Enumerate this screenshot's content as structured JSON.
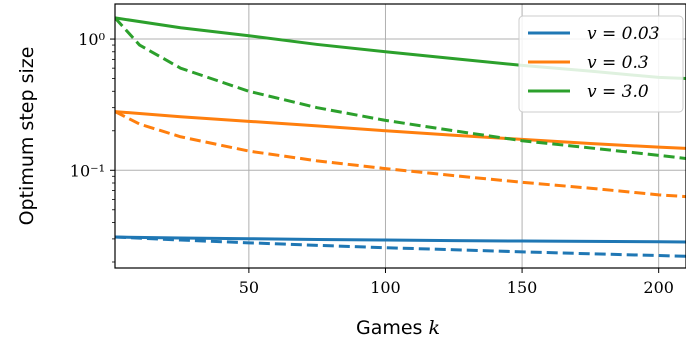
{
  "chart_data": {
    "type": "line",
    "xlabel": "Games k",
    "ylabel": "Optimum step size",
    "xlim": [
      1,
      210
    ],
    "ylim": [
      0.018,
      1.85
    ],
    "yscale": "log",
    "grid": true,
    "legend_position": "top-right",
    "x_ticks": [
      50,
      100,
      150,
      200
    ],
    "x_tick_labels": [
      "50",
      "100",
      "150",
      "200"
    ],
    "y_ticks": [
      1.0,
      0.1
    ],
    "y_tick_labels": [
      "10⁰",
      "10⁻¹"
    ],
    "legend": [
      "v = 0.03",
      "v = 0.3",
      "v = 3.0"
    ],
    "series": [
      {
        "name": "v = 0.03",
        "color": "#1f77b4",
        "linestyle": "solid",
        "x": [
          1,
          25,
          50,
          75,
          100,
          125,
          150,
          175,
          200,
          210
        ],
        "y": [
          0.031,
          0.0305,
          0.0301,
          0.0297,
          0.0294,
          0.0291,
          0.0289,
          0.0287,
          0.0285,
          0.0284
        ]
      },
      {
        "name": "v = 0.03",
        "color": "#1f77b4",
        "linestyle": "dashed",
        "x": [
          1,
          25,
          50,
          75,
          100,
          125,
          150,
          175,
          200,
          210
        ],
        "y": [
          0.031,
          0.0294,
          0.028,
          0.0268,
          0.0257,
          0.0248,
          0.0239,
          0.0231,
          0.0224,
          0.0221
        ]
      },
      {
        "name": "v = 0.3",
        "color": "#ff7f0e",
        "linestyle": "solid",
        "x": [
          1,
          25,
          50,
          75,
          100,
          125,
          150,
          175,
          200,
          210
        ],
        "y": [
          0.28,
          0.256,
          0.236,
          0.218,
          0.2,
          0.185,
          0.172,
          0.16,
          0.15,
          0.147
        ]
      },
      {
        "name": "v = 0.3",
        "color": "#ff7f0e",
        "linestyle": "dashed",
        "x": [
          1,
          10,
          25,
          50,
          75,
          100,
          125,
          150,
          175,
          200,
          210
        ],
        "y": [
          0.28,
          0.225,
          0.18,
          0.14,
          0.118,
          0.103,
          0.091,
          0.081,
          0.073,
          0.065,
          0.063
        ]
      },
      {
        "name": "v = 3.0",
        "color": "#2ca02c",
        "linestyle": "solid",
        "x": [
          1,
          25,
          50,
          75,
          100,
          125,
          150,
          175,
          200,
          210
        ],
        "y": [
          1.45,
          1.22,
          1.06,
          0.91,
          0.8,
          0.71,
          0.63,
          0.57,
          0.51,
          0.5
        ]
      },
      {
        "name": "v = 3.0",
        "color": "#2ca02c",
        "linestyle": "dashed",
        "x": [
          1,
          10,
          25,
          50,
          75,
          100,
          125,
          150,
          175,
          200,
          210
        ],
        "y": [
          1.45,
          0.9,
          0.6,
          0.4,
          0.3,
          0.24,
          0.2,
          0.168,
          0.148,
          0.13,
          0.123
        ]
      }
    ]
  }
}
